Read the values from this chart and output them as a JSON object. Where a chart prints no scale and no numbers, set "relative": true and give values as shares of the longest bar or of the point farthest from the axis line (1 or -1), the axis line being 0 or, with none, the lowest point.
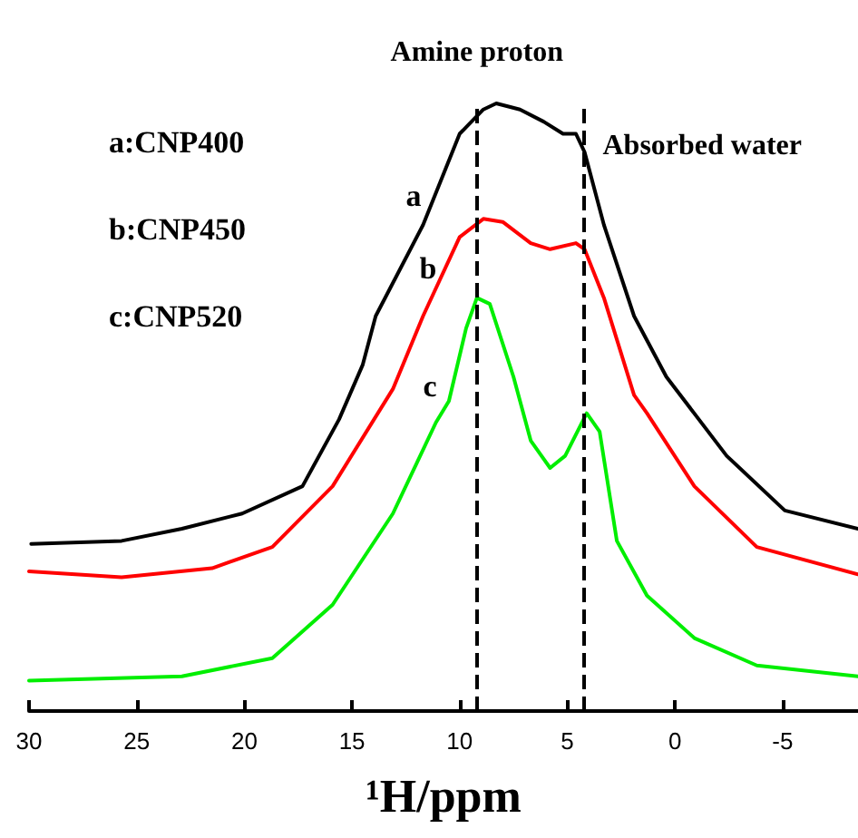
{
  "chart_data": {
    "type": "line",
    "relative": true,
    "xlabel": "¹H/ppm",
    "xlim": [
      30,
      -8.5
    ],
    "xticks": [
      30,
      25,
      20,
      15,
      10,
      5,
      0,
      -5
    ],
    "grid": false,
    "marker": "none",
    "line_style": "solid",
    "annotations": [
      "a:CNP400",
      "b:CNP450",
      "c:CNP520",
      "a",
      "b",
      "c"
    ],
    "ref_lines": [
      {
        "axis": "x",
        "value": 9.2,
        "label": "Amine proton",
        "color": "#000000",
        "line_style": "dashed"
      },
      {
        "axis": "x",
        "value": 4.2,
        "label": "Absorbed water",
        "color": "#000000",
        "line_style": "dashed"
      }
    ],
    "series": [
      {
        "color": "#000000",
        "x": [
          29.9,
          25.7,
          22.9,
          20.1,
          17.3,
          15.6,
          14.5,
          13.9,
          11.7,
          10.0,
          8.9,
          8.3,
          7.2,
          6.1,
          5.2,
          4.6,
          4.2,
          3.3,
          1.9,
          0.4,
          -2.4,
          -5.1,
          -8.5
        ],
        "values": [
          0.275,
          0.28,
          0.3,
          0.325,
          0.37,
          0.48,
          0.57,
          0.65,
          0.8,
          0.95,
          0.99,
          1,
          0.99,
          0.97,
          0.95,
          0.95,
          0.92,
          0.8,
          0.65,
          0.55,
          0.42,
          0.33,
          0.3
        ]
      },
      {
        "color": "#ff0000",
        "x": [
          30,
          25.7,
          21.5,
          18.7,
          15.9,
          13.1,
          11.7,
          10.0,
          8.9,
          8.0,
          6.7,
          5.8,
          4.6,
          4.2,
          3.3,
          1.9,
          1.3,
          -0.9,
          -3.8,
          -8.5
        ],
        "values": [
          0.23,
          0.22,
          0.235,
          0.27,
          0.37,
          0.53,
          0.65,
          0.78,
          0.81,
          0.805,
          0.77,
          0.76,
          0.77,
          0.76,
          0.68,
          0.52,
          0.49,
          0.37,
          0.27,
          0.225
        ]
      },
      {
        "color": "#00ee00",
        "x": [
          30,
          22.9,
          18.7,
          15.9,
          13.1,
          11.1,
          10.5,
          9.7,
          9.2,
          8.6,
          7.5,
          6.7,
          5.8,
          5.1,
          4.1,
          3.5,
          2.7,
          1.3,
          -0.9,
          -3.8,
          -8.5
        ],
        "values": [
          0.05,
          0.057,
          0.087,
          0.175,
          0.325,
          0.475,
          0.51,
          0.63,
          0.68,
          0.67,
          0.55,
          0.445,
          0.4,
          0.42,
          0.49,
          0.46,
          0.28,
          0.19,
          0.12,
          0.075,
          0.057
        ]
      }
    ]
  }
}
